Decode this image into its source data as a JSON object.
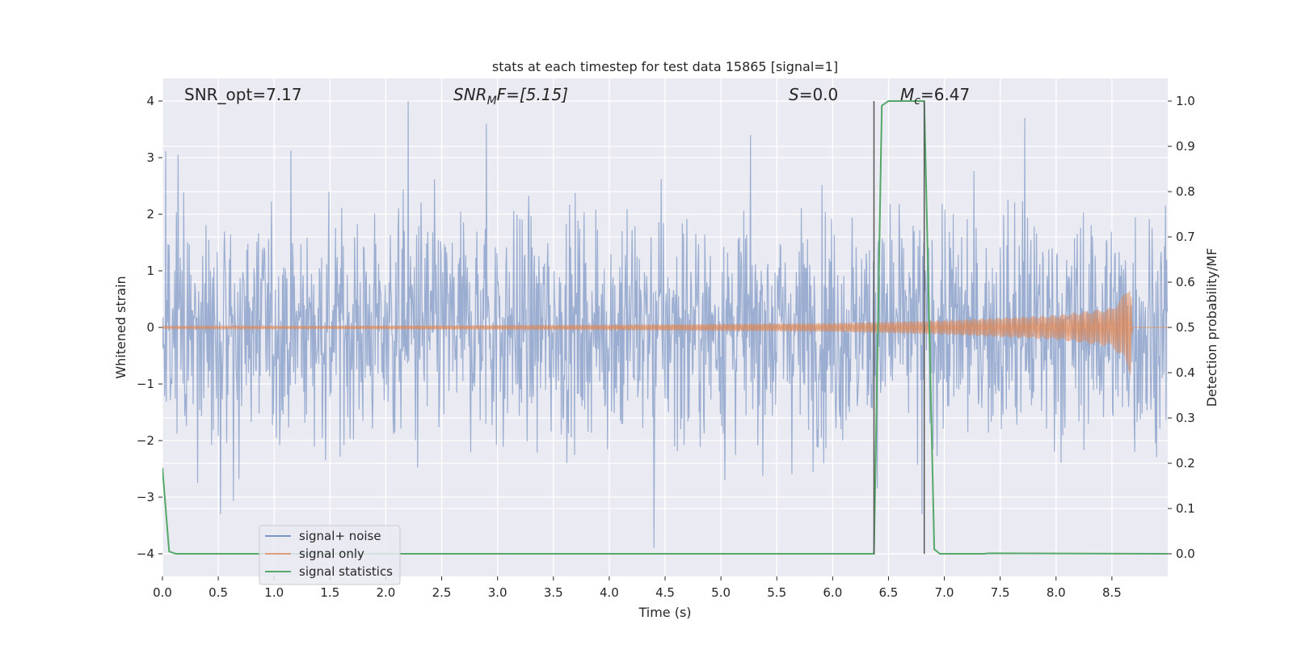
{
  "chart_data": {
    "type": "line",
    "title": "stats at each timestep for test data 15865 [signal=1]",
    "xlabel": "Time (s)",
    "ylabel_left": "Whitened strain",
    "ylabel_right": "Detection probability/MF",
    "xlim": [
      0.0,
      9.0
    ],
    "ylim_left": [
      -4.4,
      4.4
    ],
    "ylim_right": [
      -0.05,
      1.05
    ],
    "x_ticks": [
      0.0,
      0.5,
      1.0,
      1.5,
      2.0,
      2.5,
      3.0,
      3.5,
      4.0,
      4.5,
      5.0,
      5.5,
      6.0,
      6.5,
      7.0,
      7.5,
      8.0,
      8.5
    ],
    "x_tick_labels": [
      "0.0",
      "0.5",
      "1.0",
      "1.5",
      "2.0",
      "2.5",
      "3.0",
      "3.5",
      "4.0",
      "4.5",
      "5.0",
      "5.5",
      "6.0",
      "6.5",
      "7.0",
      "7.5",
      "8.0",
      "8.5"
    ],
    "y_left_ticks": [
      -4,
      -3,
      -2,
      -1,
      0,
      1,
      2,
      3,
      4
    ],
    "y_left_tick_labels": [
      "−4",
      "−3",
      "−2",
      "−1",
      "0",
      "1",
      "2",
      "3",
      "4"
    ],
    "y_right_ticks": [
      0.0,
      0.1,
      0.2,
      0.3,
      0.4,
      0.5,
      0.6,
      0.7,
      0.8,
      0.9,
      1.0
    ],
    "y_right_tick_labels": [
      "0.0",
      "0.1",
      "0.2",
      "0.3",
      "0.4",
      "0.5",
      "0.6",
      "0.7",
      "0.8",
      "0.9",
      "1.0"
    ],
    "grid": true,
    "background": "#eaeaf2",
    "legend_position": "lower-left",
    "annotations": {
      "snr_opt": "SNR_opt=7.17",
      "snr_mf_base": "SNR",
      "snr_mf_sub": "M",
      "snr_mf_rest": "F=[5.15]",
      "s_base": "S",
      "s_rest": "=0.0",
      "mc_base": "M",
      "mc_sub": "c",
      "mc_rest": "=6.47"
    },
    "vertical_lines_x": [
      6.37,
      6.82
    ],
    "series": [
      {
        "name": "signal+ noise",
        "color": "#4c72b0",
        "kind": "noise",
        "approx_range": [
          -3.9,
          4.0
        ],
        "peaks": [
          [
            0.14,
            3.05
          ],
          [
            2.2,
            4.0
          ],
          [
            2.9,
            3.6
          ],
          [
            7.72,
            3.7
          ],
          [
            4.4,
            -3.9
          ],
          [
            0.52,
            -3.3
          ],
          [
            6.8,
            -3.3
          ]
        ]
      },
      {
        "name": "signal only",
        "color": "#dd8452",
        "kind": "chirp",
        "envelope": [
          [
            0.0,
            0.02
          ],
          [
            4.0,
            0.05
          ],
          [
            6.0,
            0.08
          ],
          [
            7.0,
            0.13
          ],
          [
            8.0,
            0.22
          ],
          [
            8.5,
            0.35
          ],
          [
            8.62,
            0.62
          ],
          [
            8.67,
            0.85
          ],
          [
            8.68,
            0.0
          ],
          [
            9.0,
            0.0
          ]
        ]
      },
      {
        "name": "signal statistics",
        "color": "#55a868",
        "axis": "right",
        "x": [
          0.0,
          0.06,
          0.12,
          6.37,
          6.44,
          6.5,
          6.82,
          6.91,
          6.96,
          7.35,
          7.4,
          9.0
        ],
        "y": [
          0.19,
          0.005,
          0.0,
          0.0,
          0.99,
          1.0,
          1.0,
          0.01,
          0.0,
          0.0,
          0.001,
          0.0
        ]
      }
    ]
  }
}
